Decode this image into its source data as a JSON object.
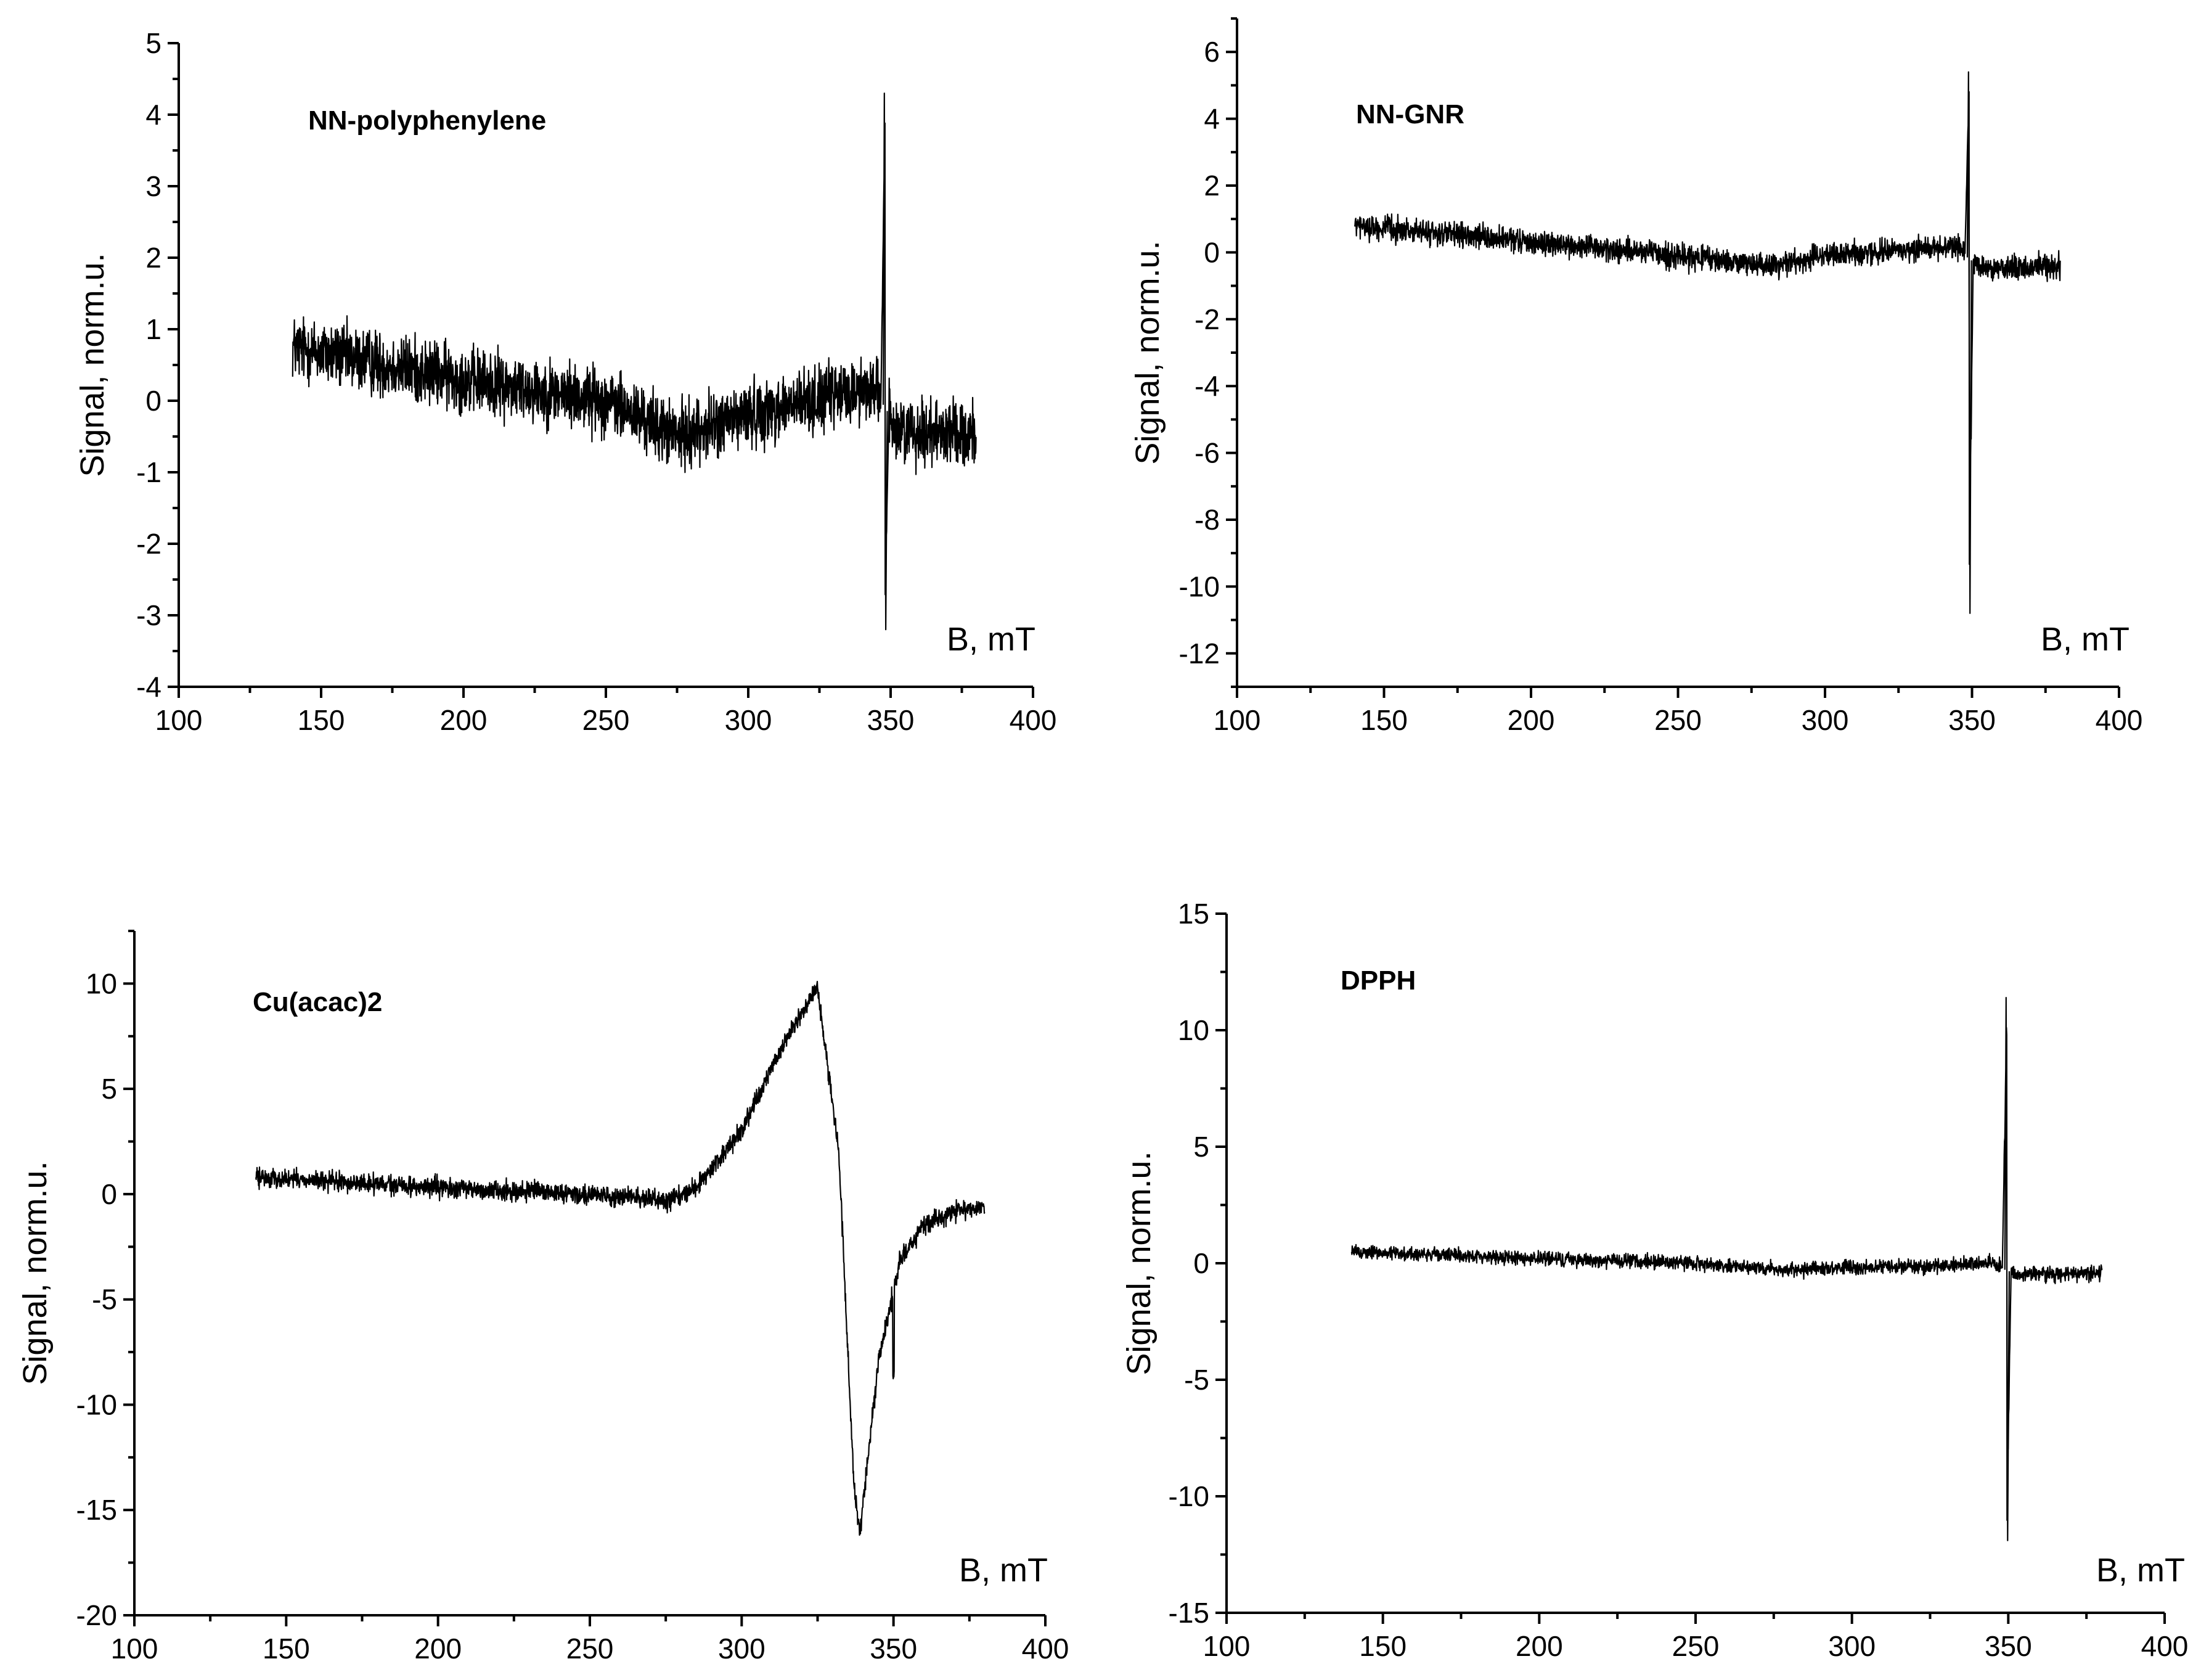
{
  "chart_data": [
    {
      "type": "line",
      "sample_label": "NN-polyphenylene",
      "xlabel": "B, mT",
      "ylabel": "Signal, norm.u.",
      "xlim": [
        100,
        400
      ],
      "ylim": [
        -4,
        5
      ],
      "xticks": [
        "100",
        "150",
        "200",
        "250",
        "300",
        "350",
        "400"
      ],
      "yticks": [
        "-4",
        "-3",
        "-2",
        "-1",
        "0",
        "1",
        "2",
        "3",
        "4",
        "5"
      ],
      "x_range": [
        140,
        380
      ],
      "baseline": [
        [
          140,
          0.75
        ],
        [
          200,
          0.3
        ],
        [
          250,
          0.0
        ],
        [
          275,
          -0.5
        ],
        [
          300,
          -0.2
        ],
        [
          345,
          0.2
        ],
        [
          352,
          -0.4
        ],
        [
          380,
          -0.45
        ]
      ],
      "noise_amplitude": 0.45,
      "features": [
        {
          "center": 348,
          "shape": "sharp_derivative",
          "peak_high": 4.3,
          "peak_low": -3.2
        }
      ]
    },
    {
      "type": "line",
      "sample_label": "NN-GNR",
      "xlabel": "B, mT",
      "ylabel": "Signal, norm.u.",
      "xlim": [
        100,
        400
      ],
      "ylim": [
        -13,
        7
      ],
      "xticks": [
        "100",
        "150",
        "200",
        "250",
        "300",
        "350",
        "400"
      ],
      "yticks": [
        "-12",
        "-10",
        "-8",
        "-6",
        "-4",
        "-2",
        "0",
        "2",
        "4",
        "6"
      ],
      "x_range": [
        140,
        380
      ],
      "baseline": [
        [
          140,
          0.8
        ],
        [
          200,
          0.3
        ],
        [
          250,
          -0.1
        ],
        [
          280,
          -0.4
        ],
        [
          300,
          -0.1
        ],
        [
          345,
          0.2
        ],
        [
          353,
          -0.5
        ],
        [
          380,
          -0.4
        ]
      ],
      "noise_amplitude": 0.35,
      "features": [
        {
          "center": 349,
          "shape": "sharp_derivative",
          "peak_high": 5.4,
          "peak_low": -10.8
        }
      ]
    },
    {
      "type": "line",
      "sample_label": "Cu(acac)2",
      "xlabel": "B, mT",
      "ylabel": "Signal, norm.u.",
      "xlim": [
        100,
        400
      ],
      "ylim": [
        -20,
        12.5
      ],
      "xticks": [
        "100",
        "150",
        "200",
        "250",
        "300",
        "350",
        "400"
      ],
      "yticks": [
        "-20",
        "-15",
        "-10",
        "-5",
        "0",
        "5",
        "10"
      ],
      "x_range": [
        140,
        380
      ],
      "baseline": [
        [
          140,
          0.8
        ],
        [
          200,
          0.3
        ],
        [
          250,
          0.0
        ],
        [
          275,
          -0.3
        ],
        [
          285,
          0.3
        ],
        [
          300,
          3.0
        ],
        [
          315,
          7.5
        ],
        [
          325,
          9.8
        ],
        [
          332,
          2.0
        ],
        [
          337,
          -14.0
        ],
        [
          339,
          -16.0
        ],
        [
          345,
          -8.0
        ],
        [
          352,
          -3.2
        ],
        [
          360,
          -1.5
        ],
        [
          370,
          -0.8
        ],
        [
          380,
          -0.6
        ]
      ],
      "noise_amplitude": 0.45,
      "features": [
        {
          "center": 350,
          "shape": "spike_down",
          "depth": -4.0
        }
      ]
    },
    {
      "type": "line",
      "sample_label": "DPPH",
      "xlabel": "B, mT",
      "ylabel": "Signal, norm.u.",
      "xlim": [
        100,
        400
      ],
      "ylim": [
        -15,
        15
      ],
      "xticks": [
        "100",
        "150",
        "200",
        "250",
        "300",
        "350",
        "400"
      ],
      "yticks": [
        "-15",
        "-10",
        "-5",
        "0",
        "5",
        "10",
        "15"
      ],
      "x_range": [
        140,
        380
      ],
      "baseline": [
        [
          140,
          0.5
        ],
        [
          200,
          0.2
        ],
        [
          250,
          0.0
        ],
        [
          280,
          -0.3
        ],
        [
          300,
          -0.2
        ],
        [
          345,
          0.0
        ],
        [
          353,
          -0.5
        ],
        [
          380,
          -0.4
        ]
      ],
      "noise_amplitude": 0.3,
      "features": [
        {
          "center": 349.5,
          "shape": "sharp_derivative",
          "peak_high": 11.4,
          "peak_low": -11.9
        }
      ]
    }
  ]
}
